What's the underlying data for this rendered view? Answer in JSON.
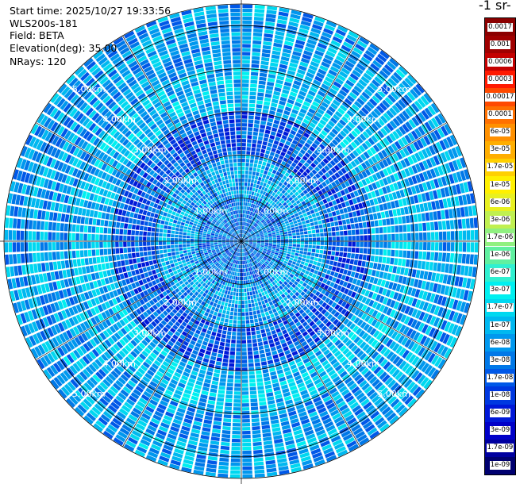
{
  "header": {
    "start_time": "Start time: 2025/10/27 19:33:56",
    "instrument": "WLS200s-181",
    "field": "Field: BETA",
    "elevation": "Elevation(deg): 35.00",
    "nrays": "NRays: 120"
  },
  "colorbar": {
    "unit_label": "-1 sr-",
    "labels": [
      "0.0017",
      "0.001",
      "0.0006",
      "0.0003",
      "0.00017",
      "0.0001",
      "6e-05",
      "3e-05",
      "1.7e-05",
      "1e-05",
      "6e-06",
      "3e-06",
      "1.7e-06",
      "1e-06",
      "6e-07",
      "3e-07",
      "1.7e-07",
      "1e-07",
      "6e-08",
      "3e-08",
      "1.7e-08",
      "1e-08",
      "6e-09",
      "3e-09",
      "1.7e-09",
      "1e-09"
    ],
    "colors": [
      "#8b0000",
      "#a00000",
      "#c40000",
      "#ff1a00",
      "#ff4a00",
      "#ff7000",
      "#ff9000",
      "#ffae00",
      "#ffd000",
      "#fff000",
      "#e8f020",
      "#c0f050",
      "#90f080",
      "#60f0a0",
      "#30f0d0",
      "#00f0f0",
      "#00d8f0",
      "#00b8f0",
      "#0098ee",
      "#0078e8",
      "#0058e8",
      "#0038e0",
      "#0018d8",
      "#0000c8",
      "#0000a0",
      "#000070"
    ]
  },
  "chart_data": {
    "type": "heatmap",
    "projection": "polar PPI",
    "field": "BETA",
    "elevation_deg": 35.0,
    "n_rays": 120,
    "range_rings_km": [
      1,
      2,
      3,
      4,
      5
    ],
    "range_ring_labels": [
      "1.00km",
      "2.00km",
      "3.00km",
      "4.00km",
      "5.00km"
    ],
    "max_range_km": 5.0,
    "azimuth_spokes_deg": [
      0,
      30,
      60,
      90,
      120,
      150,
      180,
      210,
      240,
      270,
      300,
      330
    ],
    "value_scale": "log",
    "value_range": [
      1e-09,
      0.0017
    ],
    "dominant_values_by_range": [
      {
        "range_km": [
          0,
          1
        ],
        "approx_value": 3e-08
      },
      {
        "range_km": [
          1,
          2
        ],
        "approx_value": 6e-08
      },
      {
        "range_km": [
          2,
          3
        ],
        "approx_value": 1.7e-08
      },
      {
        "range_km": [
          3,
          4
        ],
        "approx_value": 1e-07
      },
      {
        "range_km": [
          4,
          5
        ],
        "approx_value": 6e-08
      }
    ]
  }
}
